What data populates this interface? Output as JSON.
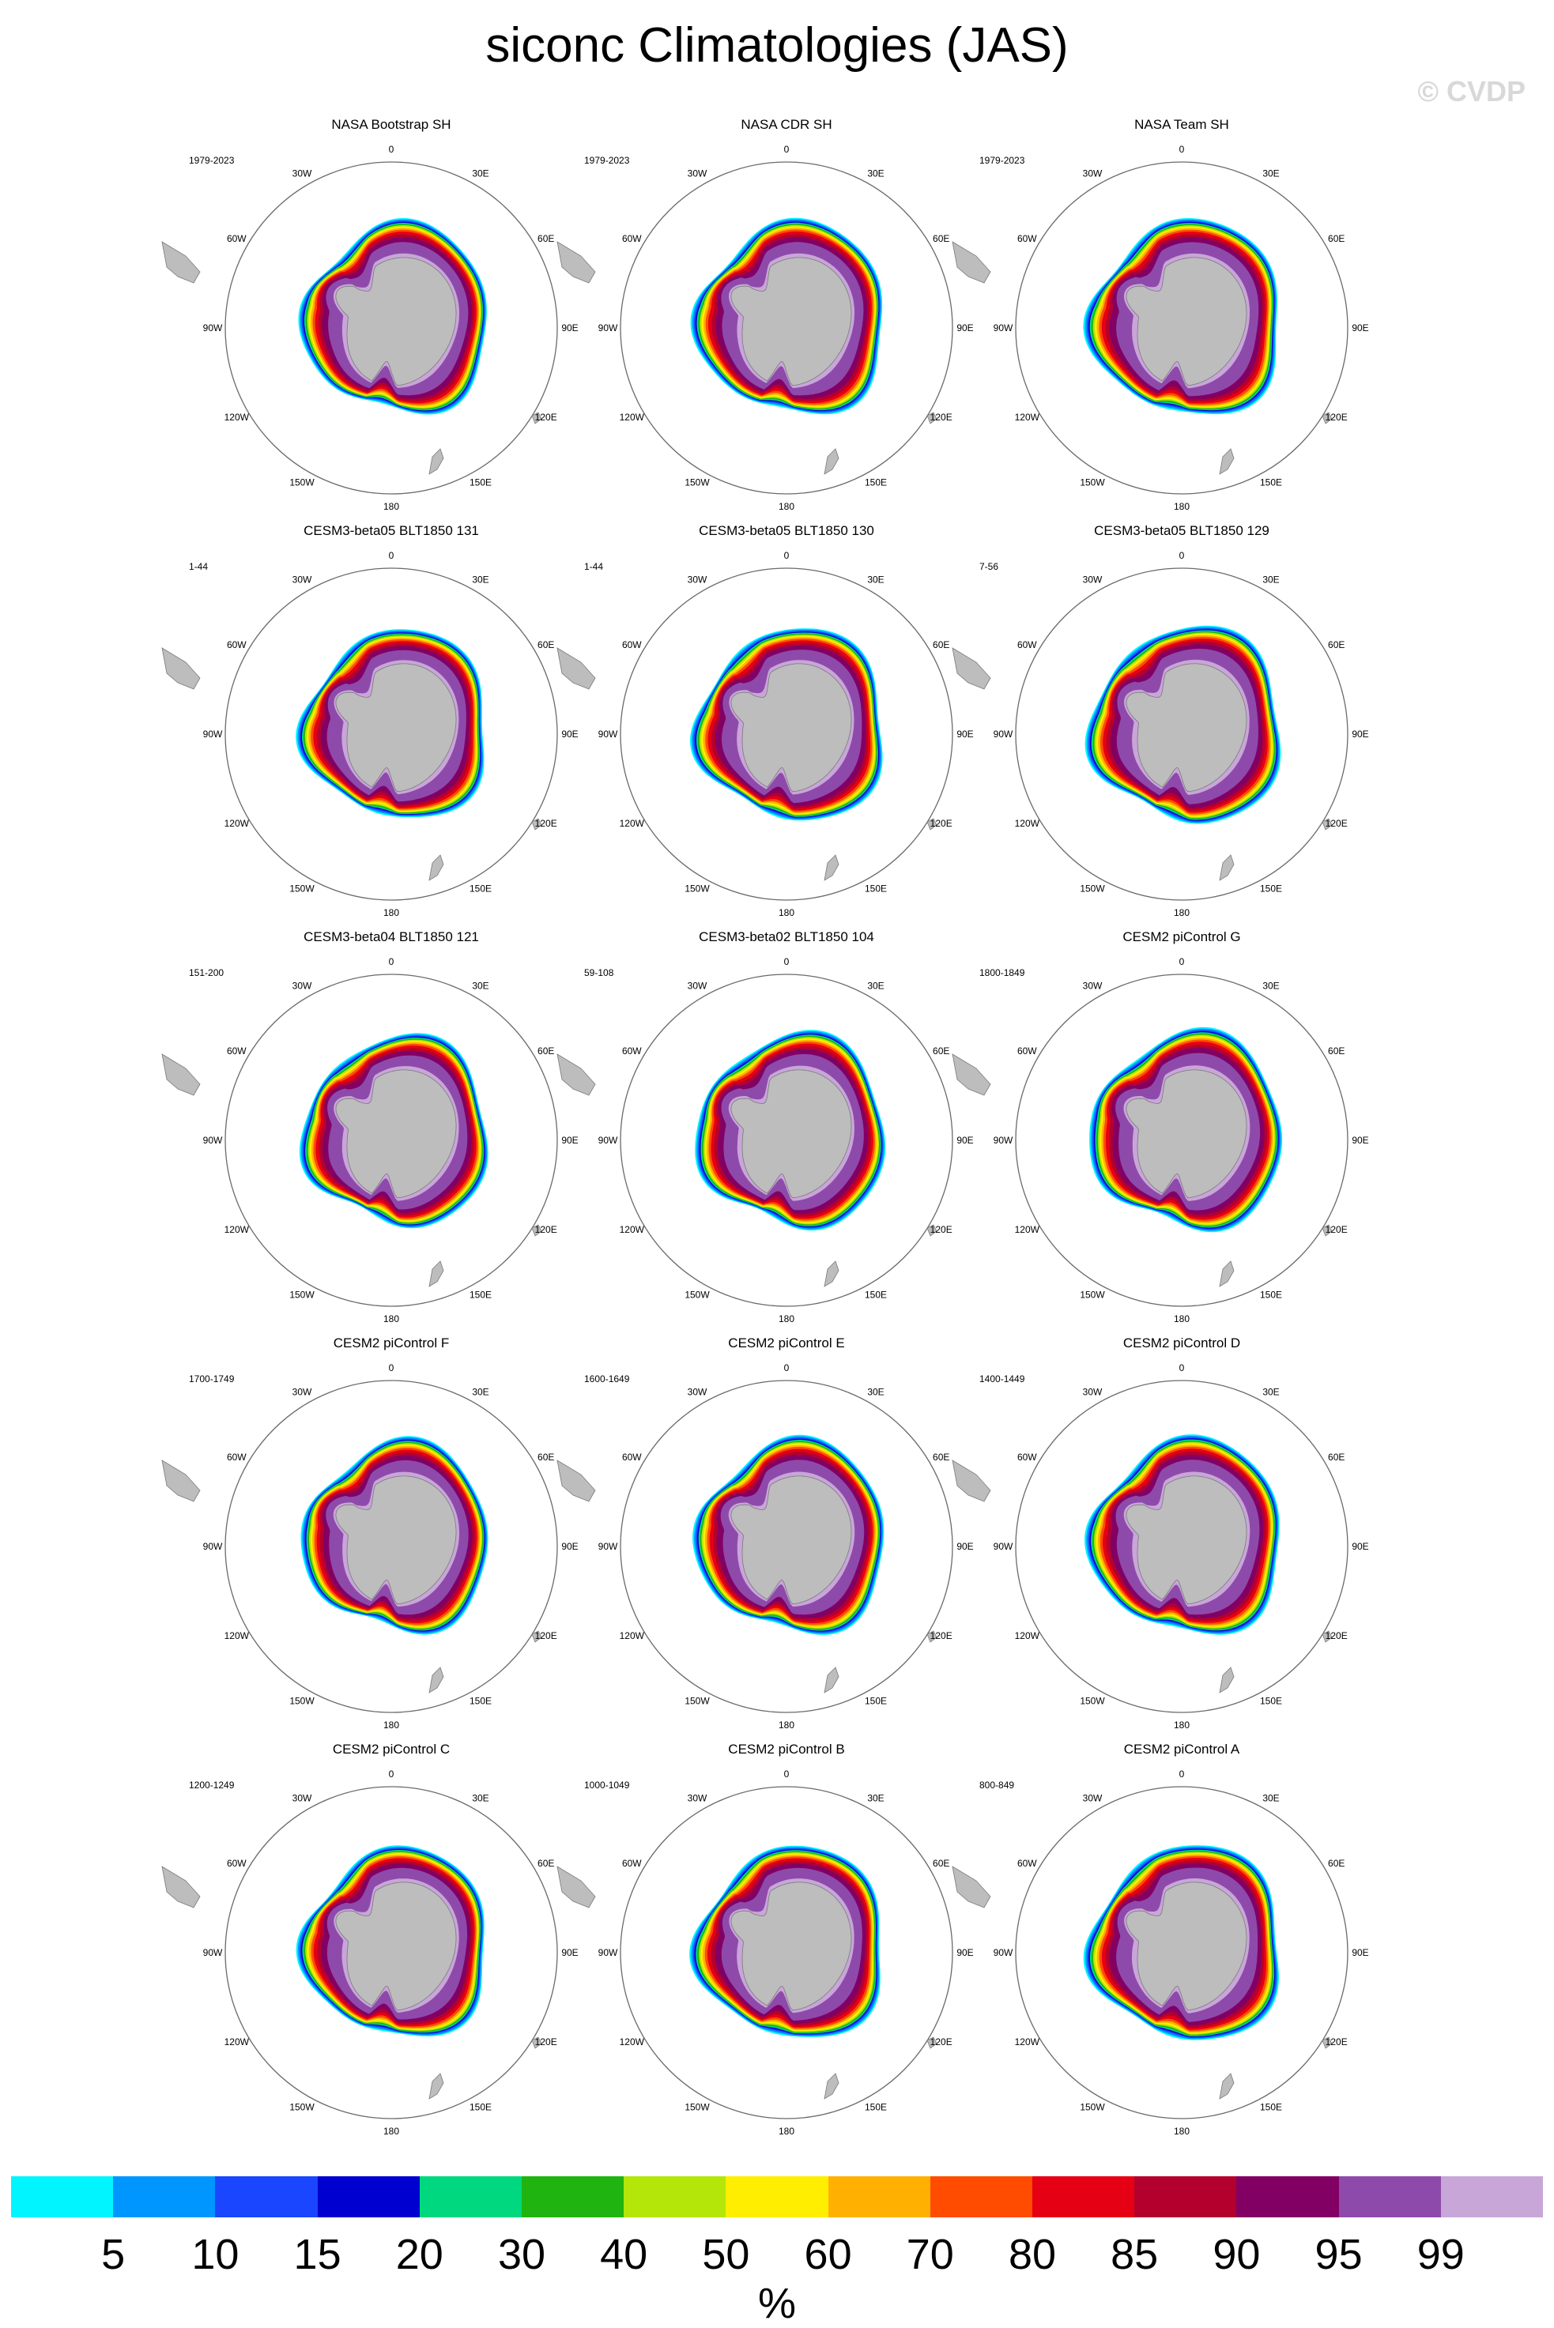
{
  "title": "siconc Climatologies (JAS)",
  "copyright": "© CVDP",
  "panels": [
    {
      "name": "NASA Bootstrap SH",
      "period": "1979-2023"
    },
    {
      "name": "NASA CDR SH",
      "period": "1979-2023"
    },
    {
      "name": "NASA Team SH",
      "period": "1979-2023"
    },
    {
      "name": "CESM3-beta05 BLT1850 131",
      "period": "1-44"
    },
    {
      "name": "CESM3-beta05 BLT1850 130",
      "period": "1-44"
    },
    {
      "name": "CESM3-beta05 BLT1850 129",
      "period": "7-56"
    },
    {
      "name": "CESM3-beta04 BLT1850 121",
      "period": "151-200"
    },
    {
      "name": "CESM3-beta02 BLT1850 104",
      "period": "59-108"
    },
    {
      "name": "CESM2 piControl G",
      "period": "1800-1849"
    },
    {
      "name": "CESM2 piControl F",
      "period": "1700-1749"
    },
    {
      "name": "CESM2 piControl E",
      "period": "1600-1649"
    },
    {
      "name": "CESM2 piControl D",
      "period": "1400-1449"
    },
    {
      "name": "CESM2 piControl C",
      "period": "1200-1249"
    },
    {
      "name": "CESM2 piControl B",
      "period": "1000-1049"
    },
    {
      "name": "CESM2 piControl A",
      "period": "800-849"
    }
  ],
  "longitude_labels": [
    "0",
    "30E",
    "60E",
    "90E",
    "120E",
    "150E",
    "180",
    "150W",
    "120W",
    "90W",
    "60W",
    "30W"
  ],
  "colorbar": {
    "colors": [
      "#00f5ff",
      "#0096ff",
      "#1a46ff",
      "#0000d0",
      "#00d87f",
      "#20b410",
      "#b4e60a",
      "#ffee00",
      "#ffb000",
      "#ff4c00",
      "#e60014",
      "#b4002d",
      "#820064",
      "#8e4aaa",
      "#c8a6d8"
    ],
    "labels": [
      "5",
      "10",
      "15",
      "20",
      "30",
      "40",
      "50",
      "60",
      "70",
      "80",
      "85",
      "90",
      "95",
      "99"
    ],
    "units": "%"
  },
  "chart_data": {
    "type": "heatmap",
    "title": "siconc Climatologies (JAS)",
    "projection": "south polar stereographic",
    "variable": "siconc",
    "units": "%",
    "contour_levels": [
      5,
      10,
      15,
      20,
      30,
      40,
      50,
      60,
      70,
      80,
      85,
      90,
      95,
      99
    ],
    "panel_count": 15,
    "layout": "5 rows x 3 columns"
  }
}
